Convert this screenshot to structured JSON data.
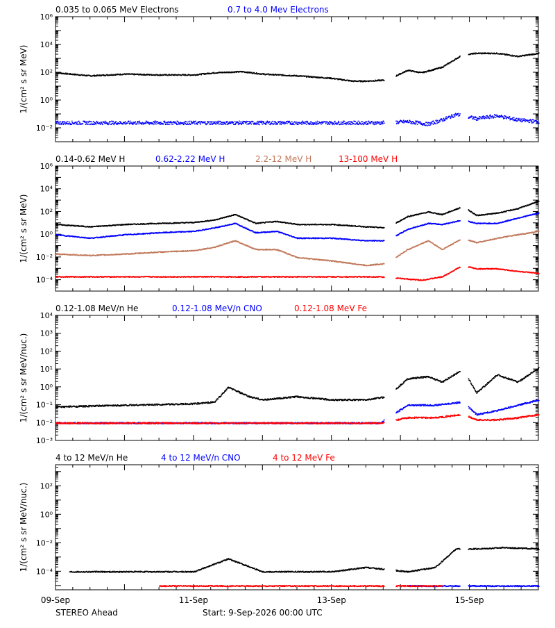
{
  "x_ticks": [
    "09-Sep",
    "11-Sep",
    "13-Sep",
    "15-Sep"
  ],
  "footer": {
    "left": "STEREO Ahead",
    "start": "Start:  9-Sep-2026 00:00 UTC"
  },
  "colors": {
    "black": "#000000",
    "blue": "#0000ff",
    "tan": "#c0785a",
    "red": "#ff0000"
  },
  "chart_data": [
    {
      "type": "scatter",
      "ylabel": "1/(cm² s sr MeV)",
      "log_y": true,
      "ylim": [
        0.001,
        1000000
      ],
      "y_tick_labels": [
        "10⁻²",
        "10⁰",
        "10²",
        "10⁴",
        "10⁶"
      ],
      "xlim_days": [
        0,
        7
      ],
      "legend": [
        {
          "label": "0.035 to 0.065 MeV Electrons",
          "color": "#000000"
        },
        {
          "label": "0.7 to 4.0 Mev Electrons",
          "color": "#0000ff"
        }
      ],
      "series": [
        {
          "name": "0.035 to 0.065 MeV Electrons",
          "color": "#000000",
          "x": [
            0,
            0.5,
            1,
            1.5,
            2,
            2.3,
            2.7,
            3,
            3.5,
            4,
            4.3,
            4.5,
            4.8,
            5.1,
            5.3,
            5.6,
            5.9,
            6.1,
            6.4,
            6.7,
            7
          ],
          "y": [
            100,
            60,
            80,
            70,
            70,
            100,
            120,
            80,
            60,
            40,
            25,
            25,
            30,
            150,
            100,
            250,
            2000,
            2500,
            2500,
            1500,
            2500
          ]
        },
        {
          "name": "0.7 to 4.0 Mev Electrons",
          "color": "#0000ff",
          "x": [
            0,
            1,
            2,
            3,
            4,
            4.7,
            5.1,
            5.4,
            5.6,
            5.8,
            6.1,
            6.4,
            6.7,
            7
          ],
          "y": [
            0.025,
            0.025,
            0.025,
            0.025,
            0.025,
            0.025,
            0.03,
            0.02,
            0.04,
            0.1,
            0.05,
            0.08,
            0.04,
            0.03
          ]
        }
      ]
    },
    {
      "type": "scatter",
      "ylabel": "1/(cm² s sr MeV)",
      "log_y": true,
      "ylim": [
        1e-05,
        1000000
      ],
      "y_tick_labels": [
        "10⁻⁴",
        "10⁻²",
        "10⁰",
        "10²",
        "10⁴",
        "10⁶"
      ],
      "xlim_days": [
        0,
        7
      ],
      "legend": [
        {
          "label": "0.14-0.62 MeV H",
          "color": "#000000"
        },
        {
          "label": "0.62-2.22 MeV H",
          "color": "#0000ff"
        },
        {
          "label": "2.2-12 MeV H",
          "color": "#c0785a"
        },
        {
          "label": "13-100 MeV H",
          "color": "#ff0000"
        }
      ],
      "series": [
        {
          "name": "0.14-0.62 MeV H",
          "color": "#000000",
          "x": [
            0,
            0.5,
            1,
            1.5,
            2,
            2.3,
            2.6,
            2.9,
            3.2,
            3.5,
            4,
            4.5,
            4.8,
            5.1,
            5.4,
            5.6,
            5.9,
            6.1,
            6.4,
            6.7,
            7
          ],
          "y": [
            8,
            5,
            8,
            10,
            12,
            20,
            60,
            10,
            15,
            8,
            8,
            5,
            4,
            40,
            100,
            60,
            300,
            50,
            80,
            200,
            900
          ]
        },
        {
          "name": "0.62-2.22 MeV H",
          "color": "#0000ff",
          "x": [
            0,
            0.5,
            1,
            1.5,
            2,
            2.3,
            2.6,
            2.9,
            3.2,
            3.5,
            4,
            4.5,
            4.8,
            5.1,
            5.4,
            5.6,
            5.9,
            6.1,
            6.4,
            6.7,
            7
          ],
          "y": [
            1,
            0.5,
            1,
            1.5,
            2,
            4,
            10,
            1.5,
            2,
            0.5,
            0.5,
            0.3,
            0.3,
            3,
            10,
            8,
            20,
            10,
            10,
            30,
            80
          ]
        },
        {
          "name": "2.2-12 MeV H",
          "color": "#c0785a",
          "x": [
            0,
            0.5,
            1,
            1.5,
            2,
            2.3,
            2.6,
            2.9,
            3.2,
            3.5,
            4,
            4.5,
            4.8,
            5.1,
            5.4,
            5.6,
            5.9,
            6.1,
            6.4,
            6.7,
            7
          ],
          "y": [
            0.02,
            0.015,
            0.02,
            0.03,
            0.04,
            0.08,
            0.3,
            0.05,
            0.05,
            0.01,
            0.005,
            0.002,
            0.003,
            0.05,
            0.3,
            0.05,
            0.5,
            0.2,
            0.5,
            1,
            2
          ]
        },
        {
          "name": "13-100 MeV H",
          "color": "#ff0000",
          "x": [
            0,
            1,
            2,
            3,
            4,
            4.7,
            5.3,
            5.6,
            5.9,
            6.1,
            6.4,
            6.7,
            7
          ],
          "y": [
            0.0002,
            0.0002,
            0.0002,
            0.0002,
            0.0002,
            0.0002,
            0.0001,
            0.0002,
            0.002,
            0.001,
            0.001,
            0.0006,
            0.0004
          ]
        }
      ]
    },
    {
      "type": "scatter",
      "ylabel": "1/(cm² s sr MeV/nuc.)",
      "log_y": true,
      "ylim": [
        0.001,
        10000
      ],
      "y_tick_labels": [
        "10⁻³",
        "10⁻²",
        "10⁻¹",
        "10⁰",
        "10¹",
        "10²",
        "10³",
        "10⁴"
      ],
      "xlim_days": [
        0,
        7
      ],
      "legend": [
        {
          "label": "0.12-1.08 MeV/n He",
          "color": "#000000"
        },
        {
          "label": "0.12-1.08 MeV/n CNO",
          "color": "#0000ff"
        },
        {
          "label": "0.12-1.08 MeV Fe",
          "color": "#ff0000"
        }
      ],
      "series": [
        {
          "name": "0.12-1.08 MeV/n He",
          "color": "#000000",
          "x": [
            0,
            1,
            2,
            2.3,
            2.5,
            2.8,
            3,
            3.5,
            4,
            4.5,
            4.8,
            5.1,
            5.4,
            5.6,
            5.9,
            6.1,
            6.4,
            6.7,
            7
          ],
          "y": [
            0.08,
            0.1,
            0.12,
            0.15,
            1,
            0.3,
            0.2,
            0.3,
            0.2,
            0.2,
            0.3,
            3,
            4,
            2,
            10,
            0.5,
            5,
            2,
            12
          ]
        },
        {
          "name": "0.12-1.08 MeV/n CNO",
          "color": "#0000ff",
          "x": [
            0,
            1,
            2,
            3,
            4,
            4.7,
            5.1,
            5.5,
            5.9,
            6.1,
            6.4,
            6.7,
            7
          ],
          "y": [
            0.01,
            0.01,
            0.01,
            0.01,
            0.01,
            0.01,
            0.1,
            0.1,
            0.15,
            0.03,
            0.05,
            0.1,
            0.2
          ]
        },
        {
          "name": "0.12-1.08 MeV Fe",
          "color": "#ff0000",
          "x": [
            0,
            1,
            2,
            3,
            4,
            4.7,
            5.1,
            5.5,
            5.9,
            6.1,
            6.4,
            6.7,
            7
          ],
          "y": [
            0.01,
            0.01,
            0.01,
            0.01,
            0.01,
            0.01,
            0.02,
            0.02,
            0.03,
            0.015,
            0.015,
            0.02,
            0.03
          ]
        }
      ]
    },
    {
      "type": "scatter",
      "ylabel": "1/(cm² s sr MeV/nuc.)",
      "log_y": true,
      "ylim": [
        5e-06,
        3000
      ],
      "y_tick_labels": [
        "10⁻⁴",
        "10⁻²",
        "10⁰",
        "10²"
      ],
      "xlim_days": [
        0,
        7
      ],
      "legend": [
        {
          "label": "4 to 12 MeV/n He",
          "color": "#000000"
        },
        {
          "label": "4 to 12 MeV/n CNO",
          "color": "#0000ff"
        },
        {
          "label": "4 to 12 MeV Fe",
          "color": "#ff0000"
        }
      ],
      "series": [
        {
          "name": "4 to 12 MeV/n He",
          "color": "#000000",
          "x": [
            0.2,
            1,
            2,
            2.5,
            3,
            4,
            4.5,
            5.1,
            5.5,
            5.8,
            6.1,
            6.5,
            7
          ],
          "y": [
            0.0001,
            0.0001,
            0.0001,
            0.0008,
            0.0001,
            0.0001,
            0.0002,
            0.0001,
            0.0002,
            0.004,
            0.004,
            0.005,
            0.004
          ]
        },
        {
          "name": "4 to 12 MeV/n CNO",
          "color": "#0000ff",
          "x": [
            5.1,
            5.5,
            5.9,
            6.1,
            6.5,
            7
          ],
          "y": [
            1e-05,
            1e-05,
            1e-05,
            1e-05,
            1e-05,
            1e-05
          ]
        },
        {
          "name": "4 to 12 MeV Fe",
          "color": "#ff0000",
          "x": [
            1.5,
            3.5,
            5.6
          ],
          "y": [
            1e-05,
            1e-05,
            1e-05
          ]
        }
      ]
    }
  ]
}
